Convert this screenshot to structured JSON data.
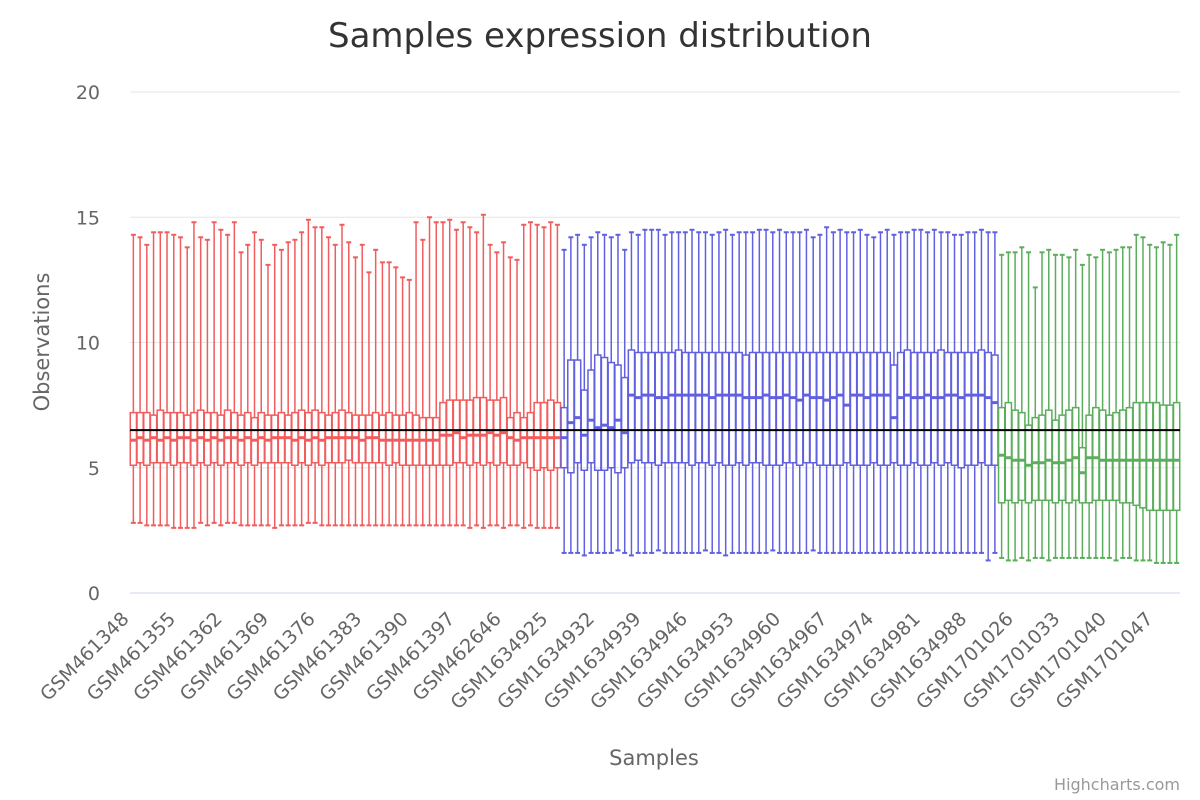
{
  "credits": "Highcharts.com",
  "chart_data": {
    "type": "boxplot",
    "title": "Samples expression distribution",
    "xlabel": "Samples",
    "ylabel": "Observations",
    "ylim": [
      0,
      20
    ],
    "yticks": [
      0,
      5,
      10,
      15,
      20
    ],
    "grid": true,
    "legend": "none",
    "reference_line": {
      "value": 6.5,
      "color": "#000000"
    },
    "x_tick_labels": [
      "GSM461348",
      "GSM461355",
      "GSM461362",
      "GSM461369",
      "GSM461376",
      "GSM461383",
      "GSM461390",
      "GSM461397",
      "GSM462646",
      "GSM1634925",
      "GSM1634932",
      "GSM1634939",
      "GSM1634946",
      "GSM1634953",
      "GSM1634960",
      "GSM1634967",
      "GSM1634974",
      "GSM1634981",
      "GSM1634988",
      "GSM1701026",
      "GSM1701033",
      "GSM1701040",
      "GSM1701047"
    ],
    "series": [
      {
        "color": "#f15c5c",
        "count": 46,
        "low": [
          2.8,
          2.8,
          2.7,
          2.7,
          2.7,
          2.7,
          2.6,
          2.6,
          2.6,
          2.6,
          2.8,
          2.7,
          2.8,
          2.7,
          2.8,
          2.8,
          2.7,
          2.7,
          2.7,
          2.7,
          2.7,
          2.6,
          2.7,
          2.7,
          2.7,
          2.7,
          2.8,
          2.8,
          2.7,
          2.7,
          2.7,
          2.7,
          2.7,
          2.7,
          2.7,
          2.7,
          2.7,
          2.7,
          2.7,
          2.7,
          2.7,
          2.7,
          2.7,
          2.7,
          2.7,
          2.7
        ],
        "q1": [
          5.1,
          5.2,
          5.1,
          5.2,
          5.2,
          5.2,
          5.1,
          5.2,
          5.2,
          5.1,
          5.2,
          5.1,
          5.2,
          5.1,
          5.2,
          5.2,
          5.1,
          5.2,
          5.1,
          5.2,
          5.2,
          5.2,
          5.2,
          5.2,
          5.1,
          5.2,
          5.1,
          5.2,
          5.1,
          5.2,
          5.2,
          5.2,
          5.3,
          5.2,
          5.2,
          5.2,
          5.2,
          5.2,
          5.1,
          5.2,
          5.1,
          5.1,
          5.1,
          5.1,
          5.1,
          5.1
        ],
        "median": [
          6.1,
          6.2,
          6.1,
          6.2,
          6.1,
          6.2,
          6.1,
          6.2,
          6.2,
          6.1,
          6.2,
          6.1,
          6.2,
          6.1,
          6.2,
          6.2,
          6.1,
          6.2,
          6.1,
          6.2,
          6.1,
          6.2,
          6.2,
          6.2,
          6.1,
          6.2,
          6.1,
          6.2,
          6.1,
          6.2,
          6.2,
          6.2,
          6.2,
          6.2,
          6.1,
          6.2,
          6.2,
          6.1,
          6.1,
          6.1,
          6.1,
          6.1,
          6.1,
          6.1,
          6.1,
          6.1
        ],
        "q3": [
          7.2,
          7.2,
          7.2,
          7.1,
          7.3,
          7.2,
          7.2,
          7.2,
          7.1,
          7.2,
          7.3,
          7.2,
          7.2,
          7.1,
          7.3,
          7.2,
          7.1,
          7.2,
          7.0,
          7.2,
          7.1,
          7.1,
          7.2,
          7.1,
          7.2,
          7.3,
          7.2,
          7.3,
          7.2,
          7.1,
          7.2,
          7.3,
          7.2,
          7.1,
          7.1,
          7.1,
          7.2,
          7.1,
          7.2,
          7.1,
          7.1,
          7.2,
          7.1,
          7.0,
          7.0,
          7.0
        ],
        "high": [
          14.3,
          14.2,
          13.9,
          14.4,
          14.4,
          14.4,
          14.3,
          14.2,
          13.8,
          14.8,
          14.2,
          14.1,
          14.8,
          14.5,
          14.3,
          14.8,
          13.6,
          13.9,
          14.4,
          14.1,
          13.1,
          13.9,
          13.7,
          14.0,
          14.1,
          14.4,
          14.9,
          14.6,
          14.6,
          14.2,
          13.9,
          14.7,
          14.0,
          13.4,
          13.9,
          12.8,
          13.7,
          13.2,
          13.2,
          13.0,
          12.6,
          12.5,
          14.8,
          14.1,
          15.0,
          14.8
        ]
      },
      {
        "color": "#f15c5c",
        "count": 18,
        "low": [
          2.7,
          2.7,
          2.7,
          2.7,
          2.6,
          2.7,
          2.6,
          2.7,
          2.7,
          2.6,
          2.7,
          2.7,
          2.6,
          2.7,
          2.6,
          2.6,
          2.6,
          2.6
        ],
        "q1": [
          5.1,
          5.1,
          5.2,
          5.2,
          5.1,
          5.2,
          5.1,
          5.2,
          5.1,
          5.2,
          5.1,
          5.1,
          5.2,
          5.0,
          4.9,
          5.0,
          4.9,
          5.0
        ],
        "median": [
          6.3,
          6.3,
          6.4,
          6.2,
          6.3,
          6.3,
          6.3,
          6.4,
          6.3,
          6.4,
          6.2,
          6.1,
          6.2,
          6.2,
          6.2,
          6.2,
          6.2,
          6.2
        ],
        "q3": [
          7.6,
          7.7,
          7.7,
          7.7,
          7.7,
          7.8,
          7.8,
          7.7,
          7.7,
          7.8,
          7.0,
          7.2,
          7.0,
          7.2,
          7.6,
          7.6,
          7.7,
          7.6
        ],
        "high": [
          14.8,
          14.9,
          14.5,
          14.8,
          14.6,
          14.4,
          15.1,
          13.9,
          13.6,
          14.0,
          13.4,
          13.3,
          14.7,
          14.8,
          14.7,
          14.6,
          14.8,
          14.7
        ]
      },
      {
        "color": "#6060e0",
        "count": 65,
        "low": [
          1.6,
          1.6,
          1.6,
          1.5,
          1.6,
          1.6,
          1.6,
          1.6,
          1.7,
          1.6,
          1.5,
          1.6,
          1.6,
          1.6,
          1.7,
          1.6,
          1.6,
          1.6,
          1.6,
          1.6,
          1.6,
          1.7,
          1.6,
          1.6,
          1.5,
          1.6,
          1.6,
          1.6,
          1.6,
          1.6,
          1.6,
          1.7,
          1.6,
          1.6,
          1.6,
          1.6,
          1.6,
          1.7,
          1.6,
          1.6,
          1.6,
          1.6,
          1.6,
          1.6,
          1.6,
          1.6,
          1.6,
          1.6,
          1.6,
          1.6,
          1.6,
          1.6,
          1.6,
          1.6,
          1.6,
          1.6,
          1.6,
          1.6,
          1.6,
          1.6,
          1.6,
          1.6,
          1.6,
          1.3,
          1.6
        ],
        "q1": [
          5.0,
          4.8,
          5.2,
          4.9,
          5.2,
          4.9,
          4.9,
          5.0,
          4.8,
          5.0,
          5.2,
          5.3,
          5.2,
          5.2,
          5.1,
          5.2,
          5.2,
          5.2,
          5.2,
          5.1,
          5.2,
          5.2,
          5.1,
          5.2,
          5.1,
          5.1,
          5.2,
          5.1,
          5.2,
          5.2,
          5.1,
          5.1,
          5.1,
          5.2,
          5.2,
          5.1,
          5.2,
          5.2,
          5.1,
          5.1,
          5.1,
          5.1,
          5.2,
          5.1,
          5.1,
          5.1,
          5.2,
          5.1,
          5.1,
          5.2,
          5.1,
          5.1,
          5.2,
          5.1,
          5.1,
          5.2,
          5.1,
          5.2,
          5.1,
          5.0,
          5.1,
          5.1,
          5.2,
          5.1,
          5.1
        ],
        "median": [
          6.2,
          6.8,
          7.0,
          6.3,
          6.9,
          6.6,
          6.7,
          6.6,
          6.9,
          6.4,
          7.9,
          7.8,
          7.9,
          7.9,
          7.8,
          7.8,
          7.9,
          7.9,
          7.9,
          7.9,
          7.9,
          7.9,
          7.8,
          7.9,
          7.9,
          7.9,
          7.9,
          7.8,
          7.8,
          7.8,
          7.9,
          7.8,
          7.8,
          7.9,
          7.8,
          7.7,
          7.9,
          7.8,
          7.8,
          7.7,
          7.8,
          7.9,
          7.5,
          7.9,
          7.9,
          7.8,
          7.9,
          7.9,
          7.9,
          7.0,
          7.8,
          7.9,
          7.8,
          7.8,
          7.9,
          7.8,
          7.8,
          7.9,
          7.9,
          7.8,
          7.9,
          7.9,
          7.9,
          7.8,
          7.6
        ],
        "q3": [
          7.4,
          9.3,
          9.3,
          8.1,
          8.9,
          9.5,
          9.4,
          9.2,
          9.1,
          8.6,
          9.7,
          9.6,
          9.6,
          9.6,
          9.6,
          9.6,
          9.6,
          9.7,
          9.6,
          9.6,
          9.6,
          9.6,
          9.6,
          9.6,
          9.6,
          9.6,
          9.6,
          9.5,
          9.6,
          9.6,
          9.6,
          9.6,
          9.6,
          9.6,
          9.6,
          9.6,
          9.6,
          9.6,
          9.6,
          9.6,
          9.6,
          9.6,
          9.6,
          9.6,
          9.6,
          9.6,
          9.6,
          9.6,
          9.6,
          9.1,
          9.6,
          9.7,
          9.6,
          9.6,
          9.6,
          9.6,
          9.7,
          9.6,
          9.6,
          9.6,
          9.6,
          9.6,
          9.7,
          9.6,
          9.5
        ],
        "high": [
          13.7,
          14.2,
          14.3,
          13.9,
          14.2,
          14.4,
          14.3,
          14.2,
          14.3,
          13.7,
          14.4,
          14.3,
          14.5,
          14.5,
          14.5,
          14.3,
          14.4,
          14.4,
          14.4,
          14.5,
          14.4,
          14.4,
          14.3,
          14.4,
          14.5,
          14.3,
          14.4,
          14.4,
          14.4,
          14.5,
          14.5,
          14.4,
          14.5,
          14.4,
          14.4,
          14.4,
          14.5,
          14.2,
          14.3,
          14.6,
          14.4,
          14.5,
          14.4,
          14.4,
          14.5,
          14.3,
          14.2,
          14.4,
          14.5,
          14.3,
          14.4,
          14.4,
          14.5,
          14.5,
          14.4,
          14.5,
          14.4,
          14.4,
          14.3,
          14.3,
          14.4,
          14.4,
          14.5,
          14.4,
          14.4
        ]
      },
      {
        "color": "#5cad5c",
        "count": 27,
        "low": [
          1.4,
          1.3,
          1.3,
          1.4,
          1.3,
          1.4,
          1.4,
          1.3,
          1.4,
          1.4,
          1.4,
          1.4,
          1.4,
          1.4,
          1.4,
          1.4,
          1.4,
          1.3,
          1.4,
          1.4,
          1.3,
          1.3,
          1.3,
          1.2,
          1.2,
          1.2,
          1.2
        ],
        "q1": [
          3.6,
          3.7,
          3.6,
          3.7,
          3.6,
          3.7,
          3.7,
          3.7,
          3.6,
          3.7,
          3.6,
          3.7,
          3.6,
          3.6,
          3.7,
          3.7,
          3.7,
          3.7,
          3.6,
          3.6,
          3.5,
          3.4,
          3.3,
          3.3,
          3.3,
          3.3,
          3.3
        ],
        "median": [
          5.5,
          5.4,
          5.3,
          5.3,
          5.1,
          5.2,
          5.2,
          5.3,
          5.2,
          5.2,
          5.3,
          5.4,
          4.8,
          5.4,
          5.4,
          5.3,
          5.3,
          5.3,
          5.3,
          5.3,
          5.3,
          5.3,
          5.3,
          5.3,
          5.3,
          5.3,
          5.3
        ],
        "q3": [
          7.4,
          7.6,
          7.3,
          7.2,
          6.7,
          7.0,
          7.1,
          7.3,
          6.9,
          7.1,
          7.3,
          7.4,
          5.8,
          7.1,
          7.4,
          7.3,
          7.1,
          7.2,
          7.3,
          7.4,
          7.6,
          7.6,
          7.6,
          7.6,
          7.5,
          7.5,
          7.6
        ],
        "high": [
          13.5,
          13.6,
          13.6,
          13.8,
          13.6,
          12.2,
          13.6,
          13.7,
          13.5,
          13.5,
          13.4,
          13.7,
          13.1,
          13.5,
          13.4,
          13.7,
          13.6,
          13.7,
          13.8,
          13.8,
          14.3,
          14.2,
          13.9,
          13.8,
          14.0,
          13.9,
          14.3
        ]
      }
    ]
  }
}
